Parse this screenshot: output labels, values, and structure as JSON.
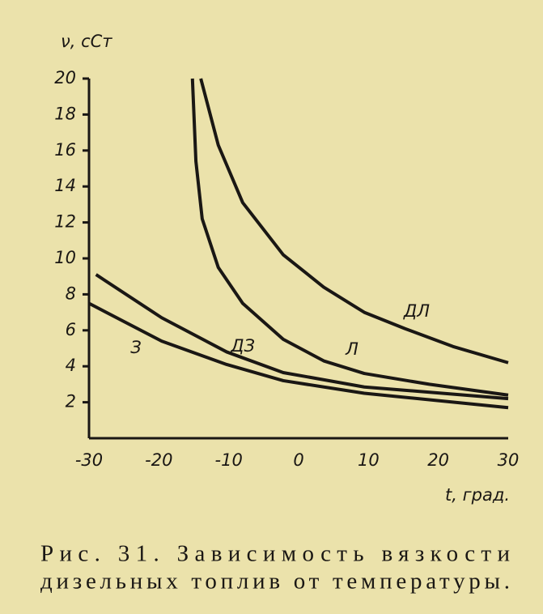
{
  "chart_data": {
    "type": "line",
    "title_lines": [
      "Рис. 31. Зависимость вязкости",
      "дизельных топлив от температуры."
    ],
    "y_label": "ν, сСт",
    "x_label": "t, град.",
    "xlim": [
      -30,
      30
    ],
    "xticks": [
      -30,
      -20,
      -10,
      0,
      10,
      20,
      30
    ],
    "ylim": [
      0,
      20
    ],
    "yticks": [
      2,
      4,
      6,
      8,
      10,
      12,
      14,
      16,
      18,
      20
    ],
    "grid": false,
    "color": "#1a1714",
    "series": [
      {
        "name": "ДЛ",
        "x": [
          -14,
          -11.5,
          -8,
          -2.2,
          3.6,
          9.4,
          15.2,
          22.1,
          30
        ],
        "values": [
          20,
          16.3,
          13.1,
          10.2,
          8.4,
          7.0,
          6.1,
          5.1,
          4.2
        ]
      },
      {
        "name": "Л",
        "x": [
          -15.2,
          -14.7,
          -13.8,
          -11.5,
          -8,
          -2.2,
          3.6,
          9.4,
          18.7,
          30
        ],
        "values": [
          20,
          15.4,
          12.2,
          9.5,
          7.5,
          5.5,
          4.3,
          3.6,
          3.0,
          2.4
        ]
      },
      {
        "name": "ДЗ",
        "x": [
          -29,
          -19.6,
          -10.3,
          -2.2,
          9.4,
          30
        ],
        "values": [
          9.1,
          6.7,
          4.8,
          3.65,
          2.85,
          2.2
        ]
      },
      {
        "name": "З",
        "x": [
          -30,
          -19.6,
          -10.3,
          -2.2,
          9.4,
          30
        ],
        "values": [
          7.5,
          5.4,
          4.1,
          3.2,
          2.5,
          1.7
        ]
      }
    ]
  }
}
